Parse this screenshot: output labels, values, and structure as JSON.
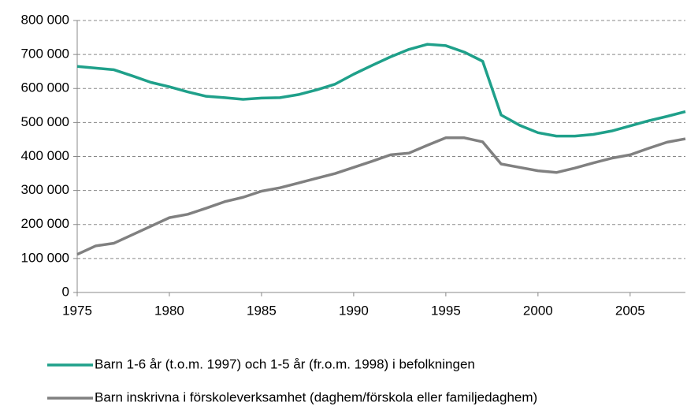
{
  "chart_data": {
    "type": "line",
    "x": [
      1975,
      1976,
      1977,
      1978,
      1979,
      1980,
      1981,
      1982,
      1983,
      1984,
      1985,
      1986,
      1987,
      1988,
      1989,
      1990,
      1991,
      1992,
      1993,
      1994,
      1995,
      1996,
      1997,
      1998,
      1999,
      2000,
      2001,
      2002,
      2003,
      2004,
      2005,
      2006,
      2007,
      2008
    ],
    "series": [
      {
        "name": "Barn 1-6 år (t.o.m. 1997) och 1-5 år (fr.o.m. 1998) i befolkningen",
        "color": "#1fa08a",
        "values": [
          665000,
          660000,
          655000,
          637000,
          618000,
          605000,
          590000,
          577000,
          573000,
          568000,
          572000,
          573000,
          582000,
          596000,
          613000,
          642000,
          668000,
          693000,
          715000,
          730000,
          726000,
          707000,
          680000,
          522000,
          492000,
          470000,
          460000,
          460000,
          465000,
          475000,
          490000,
          505000,
          518000,
          532000
        ]
      },
      {
        "name": "Barn inskrivna i förskoleverksamhet (daghem/förskola eller familjedaghem)",
        "color": "#808080",
        "values": [
          112000,
          137000,
          145000,
          170000,
          195000,
          220000,
          230000,
          248000,
          267000,
          280000,
          298000,
          308000,
          322000,
          336000,
          350000,
          368000,
          386000,
          405000,
          410000,
          433000,
          455000,
          455000,
          443000,
          378000,
          368000,
          358000,
          353000,
          366000,
          381000,
          395000,
          405000,
          424000,
          442000,
          452000
        ]
      }
    ],
    "xlim": [
      1975,
      2008
    ],
    "xticks": [
      1975,
      1980,
      1985,
      1990,
      1995,
      2000,
      2005
    ],
    "ylim": [
      0,
      800000
    ],
    "yticks": [
      0,
      {
        "value": 100000,
        "label": "100 000"
      },
      {
        "value": 200000,
        "label": "200 000"
      },
      {
        "value": 300000,
        "label": "300 000"
      },
      {
        "value": 400000,
        "label": "400 000"
      },
      {
        "value": 500000,
        "label": "500 000"
      },
      {
        "value": 600000,
        "label": "600 000"
      },
      {
        "value": 700000,
        "label": "700 000"
      },
      {
        "value": 800000,
        "label": "800 000"
      }
    ],
    "grid": true
  }
}
